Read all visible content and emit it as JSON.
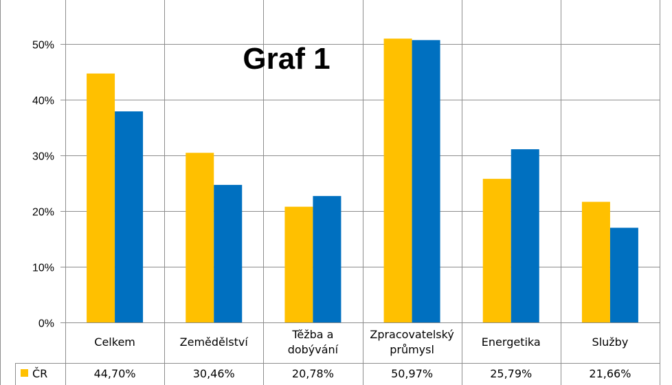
{
  "chart_data": {
    "type": "bar",
    "title": "Graf 1",
    "categories": [
      [
        "Celkem"
      ],
      [
        "Zemědělství"
      ],
      [
        "Těžba a",
        "dobývání"
      ],
      [
        "Zpracovatelský",
        "průmysl"
      ],
      [
        "Energetika"
      ],
      [
        "Služby"
      ]
    ],
    "series": [
      {
        "name": "ČR",
        "color": "#FFC000",
        "values": [
          44.7,
          30.46,
          20.78,
          50.97,
          25.79,
          21.66
        ],
        "labels": [
          "44,70%",
          "30,46%",
          "20,78%",
          "50,97%",
          "25,79%",
          "21,66%"
        ]
      },
      {
        "color": "#0070C0",
        "values": [
          37.9,
          24.7,
          22.7,
          50.7,
          31.1,
          17.0
        ]
      }
    ],
    "ylim": [
      0,
      55
    ],
    "yticks": [
      0,
      10,
      20,
      30,
      40,
      50
    ],
    "ytick_labels": [
      "0%",
      "10%",
      "20%",
      "30%",
      "40%",
      "50%"
    ],
    "grid": true,
    "legend": "data-table-below"
  }
}
